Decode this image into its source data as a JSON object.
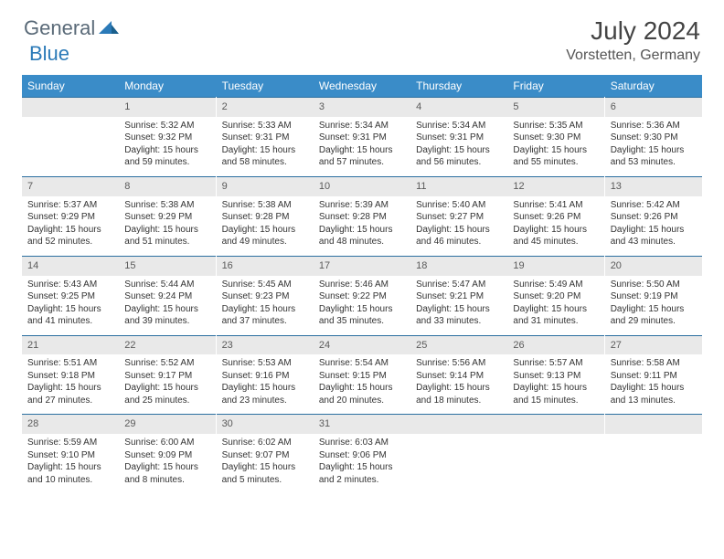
{
  "logo": {
    "part1": "General",
    "part2": "Blue"
  },
  "title": "July 2024",
  "location": "Vorstetten, Germany",
  "colors": {
    "header_bg": "#3a8cc8",
    "header_text": "#ffffff",
    "daynum_bg": "#e9e9e9",
    "daynum_border": "#2b6fa0",
    "body_text": "#333333",
    "logo_gray": "#5a6a78",
    "logo_blue": "#2b7ab8"
  },
  "day_names": [
    "Sunday",
    "Monday",
    "Tuesday",
    "Wednesday",
    "Thursday",
    "Friday",
    "Saturday"
  ],
  "weeks": [
    [
      {
        "n": "",
        "sunrise": "",
        "sunset": "",
        "daylight": ""
      },
      {
        "n": "1",
        "sunrise": "Sunrise: 5:32 AM",
        "sunset": "Sunset: 9:32 PM",
        "daylight": "Daylight: 15 hours and 59 minutes."
      },
      {
        "n": "2",
        "sunrise": "Sunrise: 5:33 AM",
        "sunset": "Sunset: 9:31 PM",
        "daylight": "Daylight: 15 hours and 58 minutes."
      },
      {
        "n": "3",
        "sunrise": "Sunrise: 5:34 AM",
        "sunset": "Sunset: 9:31 PM",
        "daylight": "Daylight: 15 hours and 57 minutes."
      },
      {
        "n": "4",
        "sunrise": "Sunrise: 5:34 AM",
        "sunset": "Sunset: 9:31 PM",
        "daylight": "Daylight: 15 hours and 56 minutes."
      },
      {
        "n": "5",
        "sunrise": "Sunrise: 5:35 AM",
        "sunset": "Sunset: 9:30 PM",
        "daylight": "Daylight: 15 hours and 55 minutes."
      },
      {
        "n": "6",
        "sunrise": "Sunrise: 5:36 AM",
        "sunset": "Sunset: 9:30 PM",
        "daylight": "Daylight: 15 hours and 53 minutes."
      }
    ],
    [
      {
        "n": "7",
        "sunrise": "Sunrise: 5:37 AM",
        "sunset": "Sunset: 9:29 PM",
        "daylight": "Daylight: 15 hours and 52 minutes."
      },
      {
        "n": "8",
        "sunrise": "Sunrise: 5:38 AM",
        "sunset": "Sunset: 9:29 PM",
        "daylight": "Daylight: 15 hours and 51 minutes."
      },
      {
        "n": "9",
        "sunrise": "Sunrise: 5:38 AM",
        "sunset": "Sunset: 9:28 PM",
        "daylight": "Daylight: 15 hours and 49 minutes."
      },
      {
        "n": "10",
        "sunrise": "Sunrise: 5:39 AM",
        "sunset": "Sunset: 9:28 PM",
        "daylight": "Daylight: 15 hours and 48 minutes."
      },
      {
        "n": "11",
        "sunrise": "Sunrise: 5:40 AM",
        "sunset": "Sunset: 9:27 PM",
        "daylight": "Daylight: 15 hours and 46 minutes."
      },
      {
        "n": "12",
        "sunrise": "Sunrise: 5:41 AM",
        "sunset": "Sunset: 9:26 PM",
        "daylight": "Daylight: 15 hours and 45 minutes."
      },
      {
        "n": "13",
        "sunrise": "Sunrise: 5:42 AM",
        "sunset": "Sunset: 9:26 PM",
        "daylight": "Daylight: 15 hours and 43 minutes."
      }
    ],
    [
      {
        "n": "14",
        "sunrise": "Sunrise: 5:43 AM",
        "sunset": "Sunset: 9:25 PM",
        "daylight": "Daylight: 15 hours and 41 minutes."
      },
      {
        "n": "15",
        "sunrise": "Sunrise: 5:44 AM",
        "sunset": "Sunset: 9:24 PM",
        "daylight": "Daylight: 15 hours and 39 minutes."
      },
      {
        "n": "16",
        "sunrise": "Sunrise: 5:45 AM",
        "sunset": "Sunset: 9:23 PM",
        "daylight": "Daylight: 15 hours and 37 minutes."
      },
      {
        "n": "17",
        "sunrise": "Sunrise: 5:46 AM",
        "sunset": "Sunset: 9:22 PM",
        "daylight": "Daylight: 15 hours and 35 minutes."
      },
      {
        "n": "18",
        "sunrise": "Sunrise: 5:47 AM",
        "sunset": "Sunset: 9:21 PM",
        "daylight": "Daylight: 15 hours and 33 minutes."
      },
      {
        "n": "19",
        "sunrise": "Sunrise: 5:49 AM",
        "sunset": "Sunset: 9:20 PM",
        "daylight": "Daylight: 15 hours and 31 minutes."
      },
      {
        "n": "20",
        "sunrise": "Sunrise: 5:50 AM",
        "sunset": "Sunset: 9:19 PM",
        "daylight": "Daylight: 15 hours and 29 minutes."
      }
    ],
    [
      {
        "n": "21",
        "sunrise": "Sunrise: 5:51 AM",
        "sunset": "Sunset: 9:18 PM",
        "daylight": "Daylight: 15 hours and 27 minutes."
      },
      {
        "n": "22",
        "sunrise": "Sunrise: 5:52 AM",
        "sunset": "Sunset: 9:17 PM",
        "daylight": "Daylight: 15 hours and 25 minutes."
      },
      {
        "n": "23",
        "sunrise": "Sunrise: 5:53 AM",
        "sunset": "Sunset: 9:16 PM",
        "daylight": "Daylight: 15 hours and 23 minutes."
      },
      {
        "n": "24",
        "sunrise": "Sunrise: 5:54 AM",
        "sunset": "Sunset: 9:15 PM",
        "daylight": "Daylight: 15 hours and 20 minutes."
      },
      {
        "n": "25",
        "sunrise": "Sunrise: 5:56 AM",
        "sunset": "Sunset: 9:14 PM",
        "daylight": "Daylight: 15 hours and 18 minutes."
      },
      {
        "n": "26",
        "sunrise": "Sunrise: 5:57 AM",
        "sunset": "Sunset: 9:13 PM",
        "daylight": "Daylight: 15 hours and 15 minutes."
      },
      {
        "n": "27",
        "sunrise": "Sunrise: 5:58 AM",
        "sunset": "Sunset: 9:11 PM",
        "daylight": "Daylight: 15 hours and 13 minutes."
      }
    ],
    [
      {
        "n": "28",
        "sunrise": "Sunrise: 5:59 AM",
        "sunset": "Sunset: 9:10 PM",
        "daylight": "Daylight: 15 hours and 10 minutes."
      },
      {
        "n": "29",
        "sunrise": "Sunrise: 6:00 AM",
        "sunset": "Sunset: 9:09 PM",
        "daylight": "Daylight: 15 hours and 8 minutes."
      },
      {
        "n": "30",
        "sunrise": "Sunrise: 6:02 AM",
        "sunset": "Sunset: 9:07 PM",
        "daylight": "Daylight: 15 hours and 5 minutes."
      },
      {
        "n": "31",
        "sunrise": "Sunrise: 6:03 AM",
        "sunset": "Sunset: 9:06 PM",
        "daylight": "Daylight: 15 hours and 2 minutes."
      },
      {
        "n": "",
        "sunrise": "",
        "sunset": "",
        "daylight": ""
      },
      {
        "n": "",
        "sunrise": "",
        "sunset": "",
        "daylight": ""
      },
      {
        "n": "",
        "sunrise": "",
        "sunset": "",
        "daylight": ""
      }
    ]
  ]
}
